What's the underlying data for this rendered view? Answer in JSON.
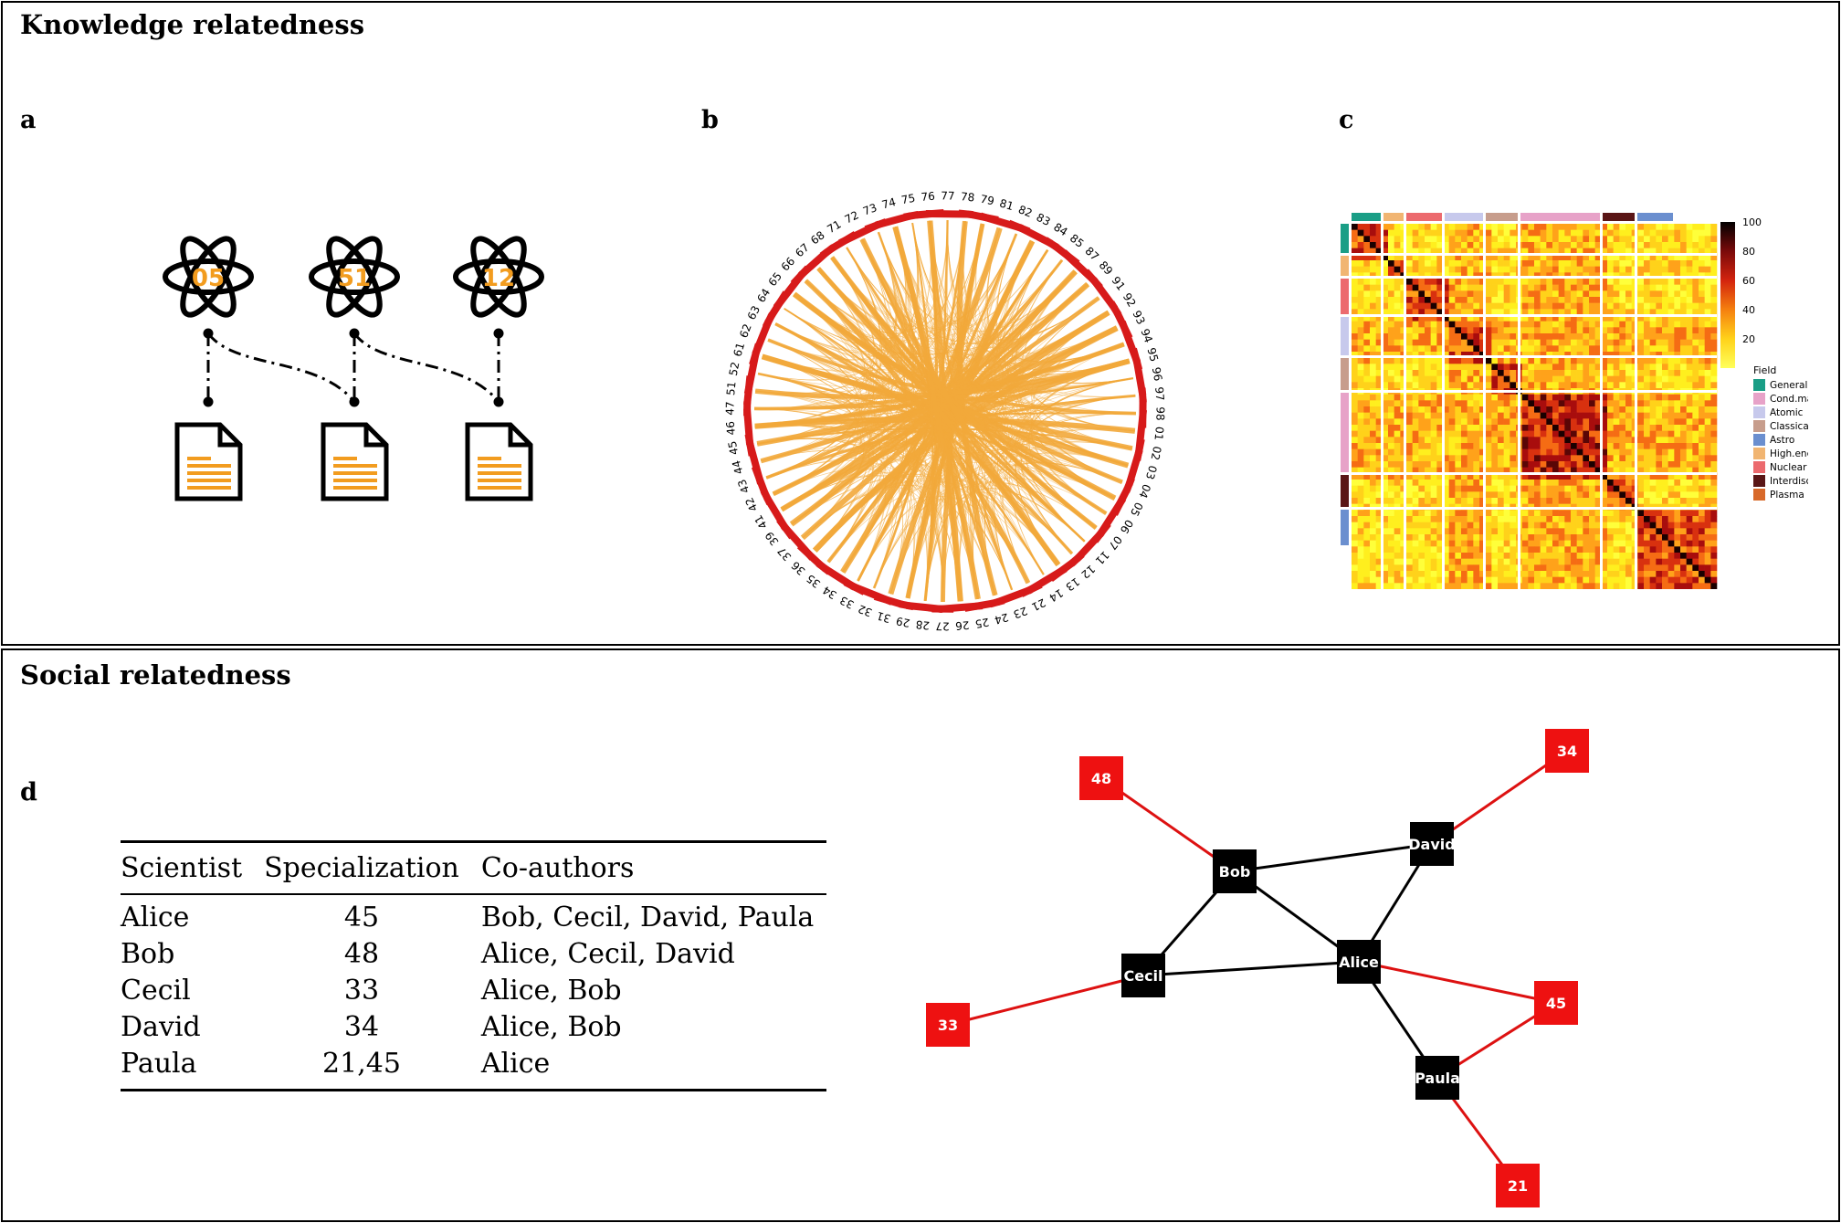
{
  "sections": {
    "knowledge": "Knowledge relatedness",
    "social": "Social relatedness"
  },
  "panel_labels": {
    "a": "a",
    "b": "b",
    "c": "c",
    "d": "d"
  },
  "panel_a": {
    "atoms": [
      "05",
      "51",
      "12"
    ],
    "icons": [
      "atom-icon",
      "document-icon"
    ],
    "colors": {
      "accent": "#f29c1f",
      "line": "#000000"
    }
  },
  "panel_b": {
    "labels": [
      "78",
      "79",
      "81",
      "82",
      "83",
      "84",
      "85",
      "87",
      "89",
      "91",
      "92",
      "93",
      "94",
      "95",
      "96",
      "97",
      "98",
      "01",
      "02",
      "03",
      "04",
      "05",
      "06",
      "07",
      "11",
      "12",
      "13",
      "14",
      "21",
      "23",
      "24",
      "25",
      "26",
      "27",
      "28",
      "29",
      "31",
      "32",
      "33",
      "34",
      "35",
      "36",
      "37",
      "39",
      "41",
      "42",
      "43",
      "44",
      "45",
      "46",
      "47",
      "51",
      "52",
      "61",
      "62",
      "63",
      "64",
      "65",
      "66",
      "67",
      "68",
      "71",
      "72",
      "73",
      "74",
      "75",
      "76",
      "77"
    ],
    "colors": {
      "chord": "#f2a93b",
      "segment": "#d71a1a"
    }
  },
  "panel_c": {
    "colorbar_ticks": [
      "100",
      "80",
      "60",
      "40",
      "20"
    ],
    "legend_title": "Field",
    "legend": [
      {
        "label": "General",
        "color": "#1a9e86"
      },
      {
        "label": "Cond.matter",
        "color": "#e7a2c8"
      },
      {
        "label": "Atomic",
        "color": "#c7c9ec"
      },
      {
        "label": "Classical",
        "color": "#c79d8c"
      },
      {
        "label": "Astro",
        "color": "#6b8fcf"
      },
      {
        "label": "High.energy",
        "color": "#f1b572"
      },
      {
        "label": "Nuclear",
        "color": "#ec6a6e"
      },
      {
        "label": "Interdisc",
        "color": "#5a1616"
      },
      {
        "label": "Plasma",
        "color": "#d8692a"
      }
    ]
  },
  "table": {
    "headers": [
      "Scientist",
      "Specialization",
      "Co-authors"
    ],
    "rows": [
      [
        "Alice",
        "45",
        "Bob, Cecil, David, Paula"
      ],
      [
        "Bob",
        "48",
        "Alice, Cecil, David"
      ],
      [
        "Cecil",
        "33",
        "Alice, Bob"
      ],
      [
        "David",
        "34",
        "Alice, Bob"
      ],
      [
        "Paula",
        "21,45",
        "Alice"
      ]
    ]
  },
  "network": {
    "scientists": [
      "Bob",
      "David",
      "Cecil",
      "Alice",
      "Paula"
    ],
    "fields": [
      "48",
      "34",
      "33",
      "45",
      "21"
    ],
    "colors": {
      "scientist": "#000000",
      "field": "#ee1111",
      "field_edge": "#dd1111"
    }
  }
}
